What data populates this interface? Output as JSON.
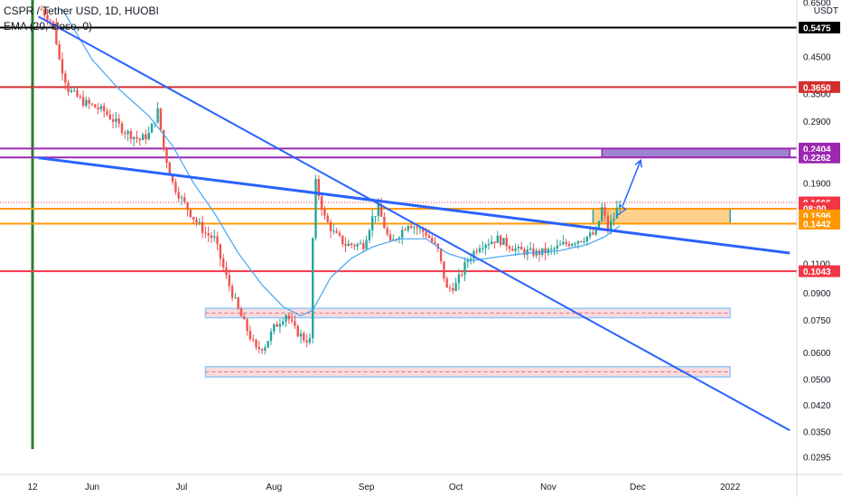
{
  "header": {
    "symbol_line": "CSPR / Tether USD, 1D, HUOBI",
    "indicator_line": "EMA (20, close, 0)",
    "scale_unit": "USDT"
  },
  "colors": {
    "up": "#26a69a",
    "down": "#ef5350",
    "ema": "#42a5f5",
    "trend": "#2962ff",
    "black_level": "#000000",
    "red_level": "#d32f2f",
    "purple_level": "#9c27b0",
    "orange_level": "#ff9800",
    "zone_pink": "#f8d7da",
    "zone_orange": "#ffcc80",
    "zone_purple": "#9575cd",
    "current_price": "#f23645",
    "green_marker": "#2e7d32"
  },
  "chart_data": {
    "type": "candlestick",
    "title": "CSPR / Tether USD, 1D, HUOBI",
    "scale": "log",
    "ylim": [
      0.0265,
      0.68
    ],
    "x_range": [
      "2021-05-11",
      "2022-01-21"
    ],
    "y_ticks": [
      0.65,
      0.45,
      0.35,
      0.29,
      0.19,
      0.11,
      0.09,
      0.075,
      0.06,
      0.05,
      0.042,
      0.035,
      0.0295
    ],
    "y_tick_labels": [
      "0.6500",
      "0.4500",
      "0.3500",
      "0.2900",
      "0.1900",
      "0.1100",
      "0.0900",
      "0.0750",
      "0.0600",
      "0.0500",
      "0.0420",
      "0.0350",
      "0.0295"
    ],
    "x_ticks": [
      {
        "date": "2021-05-12",
        "label": "12"
      },
      {
        "date": "2021-06-01",
        "label": "Jun"
      },
      {
        "date": "2021-07-01",
        "label": "Jul"
      },
      {
        "date": "2021-08-01",
        "label": "Aug"
      },
      {
        "date": "2021-09-01",
        "label": "Sep"
      },
      {
        "date": "2021-10-01",
        "label": "Oct"
      },
      {
        "date": "2021-11-01",
        "label": "Nov"
      },
      {
        "date": "2021-12-01",
        "label": "Dec"
      },
      {
        "date": "2022-01-01",
        "label": "2022"
      }
    ],
    "price_path": [
      [
        "2021-05-15",
        0.62
      ],
      [
        "2021-05-19",
        0.56
      ],
      [
        "2021-05-21",
        0.44
      ],
      [
        "2021-05-24",
        0.36
      ],
      [
        "2021-05-29",
        0.33
      ],
      [
        "2021-06-05",
        0.31
      ],
      [
        "2021-06-12",
        0.27
      ],
      [
        "2021-06-17",
        0.255
      ],
      [
        "2021-06-20",
        0.265
      ],
      [
        "2021-06-23",
        0.31
      ],
      [
        "2021-06-25",
        0.24
      ],
      [
        "2021-06-28",
        0.19
      ],
      [
        "2021-07-01",
        0.17
      ],
      [
        "2021-07-05",
        0.15
      ],
      [
        "2021-07-09",
        0.135
      ],
      [
        "2021-07-12",
        0.13
      ],
      [
        "2021-07-16",
        0.1
      ],
      [
        "2021-07-20",
        0.08
      ],
      [
        "2021-07-23",
        0.07
      ],
      [
        "2021-07-26",
        0.061
      ],
      [
        "2021-07-29",
        0.063
      ],
      [
        "2021-08-01",
        0.071
      ],
      [
        "2021-08-05",
        0.078
      ],
      [
        "2021-08-08",
        0.07
      ],
      [
        "2021-08-11",
        0.066
      ],
      [
        "2021-08-13",
        0.065
      ],
      [
        "2021-08-14",
        0.13
      ],
      [
        "2021-08-15",
        0.19
      ],
      [
        "2021-08-18",
        0.15
      ],
      [
        "2021-08-21",
        0.135
      ],
      [
        "2021-08-25",
        0.125
      ],
      [
        "2021-08-31",
        0.125
      ],
      [
        "2021-09-03",
        0.15
      ],
      [
        "2021-09-05",
        0.16
      ],
      [
        "2021-09-09",
        0.125
      ],
      [
        "2021-09-15",
        0.145
      ],
      [
        "2021-09-21",
        0.135
      ],
      [
        "2021-09-25",
        0.12
      ],
      [
        "2021-09-28",
        0.092
      ],
      [
        "2021-10-01",
        0.095
      ],
      [
        "2021-10-05",
        0.113
      ],
      [
        "2021-10-09",
        0.125
      ],
      [
        "2021-10-15",
        0.13
      ],
      [
        "2021-10-22",
        0.12
      ],
      [
        "2021-10-28",
        0.118
      ],
      [
        "2021-11-02",
        0.12
      ],
      [
        "2021-11-06",
        0.125
      ],
      [
        "2021-11-12",
        0.13
      ],
      [
        "2021-11-17",
        0.135
      ],
      [
        "2021-11-19",
        0.16
      ],
      [
        "2021-11-21",
        0.14
      ],
      [
        "2021-11-23",
        0.15
      ],
      [
        "2021-11-25",
        0.168
      ]
    ],
    "ema_path": [
      [
        "2021-05-22",
        0.62
      ],
      [
        "2021-06-01",
        0.44
      ],
      [
        "2021-06-10",
        0.36
      ],
      [
        "2021-06-20",
        0.3
      ],
      [
        "2021-06-28",
        0.245
      ],
      [
        "2021-07-05",
        0.19
      ],
      [
        "2021-07-12",
        0.155
      ],
      [
        "2021-07-20",
        0.118
      ],
      [
        "2021-07-28",
        0.095
      ],
      [
        "2021-08-04",
        0.082
      ],
      [
        "2021-08-10",
        0.077
      ],
      [
        "2021-08-14",
        0.08
      ],
      [
        "2021-08-20",
        0.1
      ],
      [
        "2021-08-27",
        0.114
      ],
      [
        "2021-09-03",
        0.123
      ],
      [
        "2021-09-12",
        0.13
      ],
      [
        "2021-09-21",
        0.13
      ],
      [
        "2021-09-28",
        0.118
      ],
      [
        "2021-10-06",
        0.112
      ],
      [
        "2021-10-15",
        0.115
      ],
      [
        "2021-10-25",
        0.118
      ],
      [
        "2021-11-05",
        0.12
      ],
      [
        "2021-11-14",
        0.125
      ],
      [
        "2021-11-20",
        0.132
      ],
      [
        "2021-11-25",
        0.142
      ]
    ],
    "horizontal_levels": [
      {
        "value": 0.5475,
        "label": "0.5475",
        "color": "#000000",
        "span": "full"
      },
      {
        "value": 0.365,
        "label": "0.3650",
        "color": "#d32f2f",
        "span": "full"
      },
      {
        "value": 0.2404,
        "label": "0.2404",
        "color": "#9c27b0",
        "span": "full"
      },
      {
        "value": 0.2262,
        "label": "0.2262",
        "color": "#9c27b0",
        "span": "full"
      },
      {
        "value": 0.1666,
        "label": "0.1666",
        "color": "#f23645",
        "span": "full",
        "style": "dotted"
      },
      {
        "value": 0.1596,
        "label": "0.1596",
        "color": "#ff9800",
        "span": "full"
      },
      {
        "value": 0.1442,
        "label": "0.1442",
        "color": "#ff9800",
        "span": "full"
      },
      {
        "value": 0.1043,
        "label": "0.1043",
        "color": "#f23645",
        "span": "full"
      }
    ],
    "price_badges": [
      {
        "value": 0.5475,
        "label": "0.5475",
        "bg": "#000000",
        "fg": "#ffffff"
      },
      {
        "value": 0.365,
        "label": "0.3650",
        "bg": "#d32f2f",
        "fg": "#ffffff"
      },
      {
        "value": 0.2404,
        "label": "0.2404",
        "bg": "#9c27b0",
        "fg": "#ffffff"
      },
      {
        "value": 0.2262,
        "label": "0.2262",
        "bg": "#9c27b0",
        "fg": "#ffffff"
      },
      {
        "value": 0.1666,
        "label": "0.1666",
        "bg": "#f23645",
        "fg": "#ffffff"
      },
      {
        "value": 0.1602,
        "label": "08:00",
        "bg": "#f23645",
        "fg": "#ffffff"
      },
      {
        "value": 0.1525,
        "label": "0.1596",
        "bg": "#ff9800",
        "fg": "#ffffff"
      },
      {
        "value": 0.1442,
        "label": "0.1442",
        "bg": "#ff9800",
        "fg": "#ffffff"
      },
      {
        "value": 0.1043,
        "label": "0.1043",
        "bg": "#f23645",
        "fg": "#ffffff"
      }
    ],
    "zones": [
      {
        "from": "2021-07-09",
        "to": "2022-01-01",
        "top": 0.081,
        "bottom": 0.076,
        "mid": 0.0785,
        "fill": "#f8d7da",
        "border": "#90caf9"
      },
      {
        "from": "2021-07-09",
        "to": "2022-01-01",
        "top": 0.0545,
        "bottom": 0.0508,
        "mid": 0.0526,
        "fill": "#f8d7da",
        "border": "#90caf9"
      },
      {
        "from": "2021-11-16",
        "to": "2022-01-01",
        "top": 0.1596,
        "bottom": 0.1442,
        "fill": "#ffcc80",
        "border": "#26a69a"
      },
      {
        "from": "2021-11-19",
        "to": "2022-01-21",
        "top": 0.2404,
        "bottom": 0.2262,
        "fill": "#9575cd",
        "border": "#9c27b0"
      }
    ],
    "trendlines": [
      {
        "from": [
          "2021-05-14",
          0.59
        ],
        "to": [
          "2022-01-21",
          0.0353
        ],
        "width": 2
      },
      {
        "from": [
          "2021-05-14",
          0.2256
        ],
        "to": [
          "2022-01-21",
          0.118
        ],
        "width": 3
      },
      {
        "from": [
          "2021-05-12",
          0.2256
        ],
        "to": [
          "2021-05-14",
          0.2256
        ],
        "width": 1
      }
    ],
    "arrow": {
      "from": [
        "2021-11-26",
        0.163
      ],
      "to": [
        "2021-12-02",
        0.222
      ],
      "color": "#2962ff"
    },
    "bracket": {
      "points": [
        [
          "2021-11-25",
          0.164
        ],
        [
          "2021-11-27",
          0.159
        ],
        [
          "2021-11-24",
          0.1525
        ]
      ],
      "color": "#2962ff"
    },
    "vertical_marker": {
      "date": "2021-05-12",
      "color": "#2e7d32"
    }
  }
}
